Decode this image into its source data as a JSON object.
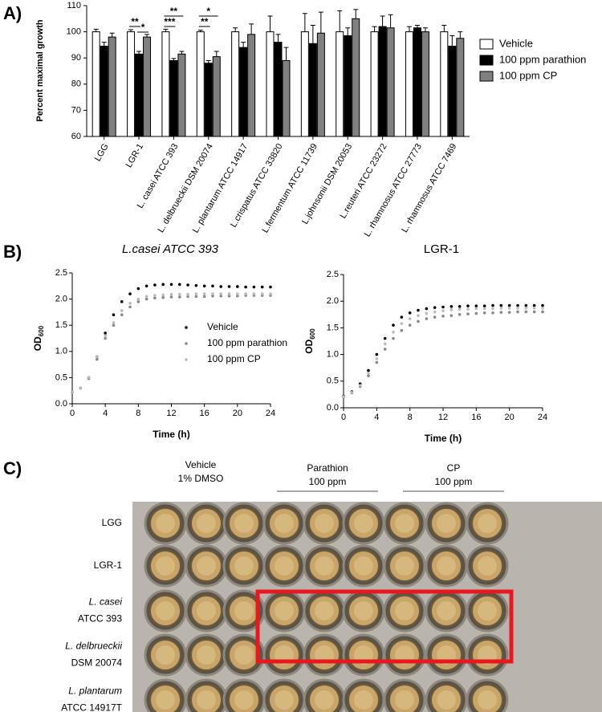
{
  "chart_data": [
    {
      "type": "bar",
      "panel_label": "A)",
      "ylabel": "Percent maximal growth",
      "categories": [
        "LGG",
        "LGR-1",
        "L. casei ATCC 393",
        "L. delbrueckii DSM 20074",
        "L. plantarum ATCC 14917",
        "L.crispatus ATCC 33820",
        "L.fermentum ATCC 11739",
        "L.johnsonii DSM 20053",
        "L.reuteri ATCC 23272",
        "L. rhamnosus ATCC 27773",
        "L. rhamnosus ATCC 7469"
      ],
      "series": [
        {
          "name": "Vehicle",
          "color": "#ffffff",
          "values": [
            100,
            100,
            100,
            100,
            100,
            100,
            100,
            100,
            100,
            100,
            100
          ],
          "errors": [
            1,
            0.8,
            1,
            0.6,
            1.5,
            6,
            7,
            8,
            2,
            2,
            2.5
          ]
        },
        {
          "name": "100 ppm parathion",
          "color": "#000000",
          "values": [
            94.5,
            91.5,
            89,
            88,
            94,
            96,
            95.5,
            98.5,
            102,
            101.5,
            94.5
          ],
          "errors": [
            1.5,
            1,
            0.8,
            1,
            2,
            3,
            7,
            3,
            4,
            1,
            4
          ]
        },
        {
          "name": "100 ppm CP",
          "color": "#808080",
          "values": [
            98,
            98,
            91.5,
            90.5,
            99,
            89,
            99.5,
            105,
            101.5,
            100,
            97.5
          ],
          "errors": [
            1.5,
            1,
            1,
            2,
            4,
            5,
            8,
            3.5,
            5,
            1.5,
            2.5
          ]
        }
      ],
      "annotations": [
        {
          "text": "**",
          "category": 1,
          "series": [
            0,
            1
          ]
        },
        {
          "text": "*",
          "category": 1,
          "series": [
            1,
            2
          ]
        },
        {
          "text": "**",
          "category": 2,
          "series": [
            0,
            2
          ]
        },
        {
          "text": "***",
          "category": 2,
          "series": [
            0,
            1
          ]
        },
        {
          "text": "*",
          "category": 3,
          "series": [
            0,
            2
          ]
        },
        {
          "text": "**",
          "category": 3,
          "series": [
            0,
            1
          ]
        }
      ],
      "ylim": [
        60,
        110
      ],
      "yticks": [
        60,
        70,
        80,
        90,
        100,
        110
      ],
      "legend": "right"
    },
    {
      "type": "scatter",
      "panel_label": "B)",
      "title": "L.casei ATCC 393",
      "xlabel": "Time (h)",
      "ylabel": "OD",
      "ylabel_subscript": "600",
      "x": [
        0,
        1,
        2,
        3,
        4,
        5,
        6,
        7,
        8,
        9,
        10,
        11,
        12,
        13,
        14,
        15,
        16,
        17,
        18,
        19,
        20,
        21,
        22,
        23,
        24
      ],
      "series": [
        {
          "name": "Vehicle",
          "color": "#000000",
          "values": [
            0.22,
            0.3,
            0.5,
            0.9,
            1.35,
            1.7,
            1.95,
            2.1,
            2.2,
            2.25,
            2.27,
            2.28,
            2.28,
            2.28,
            2.27,
            2.26,
            2.25,
            2.25,
            2.24,
            2.24,
            2.24,
            2.23,
            2.23,
            2.23,
            2.23
          ]
        },
        {
          "name": "100 ppm parathion",
          "color": "#888888",
          "values": [
            0.22,
            0.3,
            0.48,
            0.85,
            1.25,
            1.5,
            1.7,
            1.85,
            1.95,
            2.0,
            2.02,
            2.03,
            2.04,
            2.04,
            2.05,
            2.05,
            2.05,
            2.06,
            2.06,
            2.06,
            2.06,
            2.07,
            2.07,
            2.07,
            2.07
          ]
        },
        {
          "name": "100 ppm CP",
          "color": "#bbbbbb",
          "values": [
            0.22,
            0.3,
            0.5,
            0.9,
            1.3,
            1.55,
            1.78,
            1.92,
            2.0,
            2.05,
            2.07,
            2.08,
            2.09,
            2.09,
            2.09,
            2.1,
            2.1,
            2.1,
            2.1,
            2.1,
            2.1,
            2.1,
            2.1,
            2.1,
            2.1
          ]
        }
      ],
      "xlim": [
        0,
        24
      ],
      "xticks": [
        0,
        4,
        8,
        12,
        16,
        20,
        24
      ],
      "ylim": [
        0,
        2.5
      ],
      "yticks": [
        {
          "value": 0,
          "label": "0.0"
        },
        0.5,
        {
          "value": 1,
          "label": "1.0"
        },
        1.5,
        {
          "value": 2,
          "label": "2.0"
        },
        2.5
      ],
      "legend": "center"
    },
    {
      "type": "scatter",
      "title": "LGR-1",
      "xlabel": "Time (h)",
      "ylabel": "OD",
      "ylabel_subscript": "600",
      "x": [
        0,
        1,
        2,
        3,
        4,
        5,
        6,
        7,
        8,
        9,
        10,
        11,
        12,
        13,
        14,
        15,
        16,
        17,
        18,
        19,
        20,
        21,
        22,
        23,
        24
      ],
      "series": [
        {
          "name": "Vehicle",
          "color": "#000000",
          "values": [
            0.22,
            0.3,
            0.45,
            0.7,
            1.0,
            1.3,
            1.55,
            1.7,
            1.78,
            1.83,
            1.86,
            1.88,
            1.89,
            1.9,
            1.9,
            1.91,
            1.91,
            1.91,
            1.92,
            1.92,
            1.92,
            1.92,
            1.92,
            1.92,
            1.92
          ]
        },
        {
          "name": "100 ppm parathion",
          "color": "#888888",
          "values": [
            0.2,
            0.28,
            0.4,
            0.6,
            0.85,
            1.1,
            1.3,
            1.45,
            1.55,
            1.62,
            1.67,
            1.7,
            1.72,
            1.73,
            1.75,
            1.76,
            1.77,
            1.78,
            1.78,
            1.79,
            1.79,
            1.8,
            1.8,
            1.8,
            1.8
          ]
        },
        {
          "name": "100 ppm CP",
          "color": "#bbbbbb",
          "values": [
            0.21,
            0.29,
            0.42,
            0.65,
            0.92,
            1.2,
            1.42,
            1.58,
            1.67,
            1.73,
            1.77,
            1.8,
            1.82,
            1.84,
            1.85,
            1.85,
            1.86,
            1.86,
            1.86,
            1.87,
            1.87,
            1.87,
            1.87,
            1.87,
            1.87
          ]
        }
      ],
      "xlim": [
        0,
        24
      ],
      "xticks": [
        0,
        4,
        8,
        12,
        16,
        20,
        24
      ],
      "ylim": [
        0,
        2.5
      ],
      "yticks": [
        {
          "value": 0,
          "label": "0.0"
        },
        0.5,
        {
          "value": 1,
          "label": "1.0"
        },
        1.5,
        {
          "value": 2,
          "label": "2.0"
        },
        2.5
      ],
      "legend": false
    }
  ],
  "photo": {
    "panel_label": "C)",
    "column_headers": [
      [
        "Vehicle",
        "1% DMSO"
      ],
      [
        "Parathion",
        "100 ppm"
      ],
      [
        "CP",
        "100 ppm"
      ]
    ],
    "row_labels": [
      [
        "LGG"
      ],
      [
        "LGR-1"
      ],
      [
        "L. casei",
        "ATCC 393"
      ],
      [
        "L. delbrueckii",
        "DSM 20074"
      ],
      [
        "L. plantarum",
        "ATCC 14917T"
      ]
    ]
  }
}
